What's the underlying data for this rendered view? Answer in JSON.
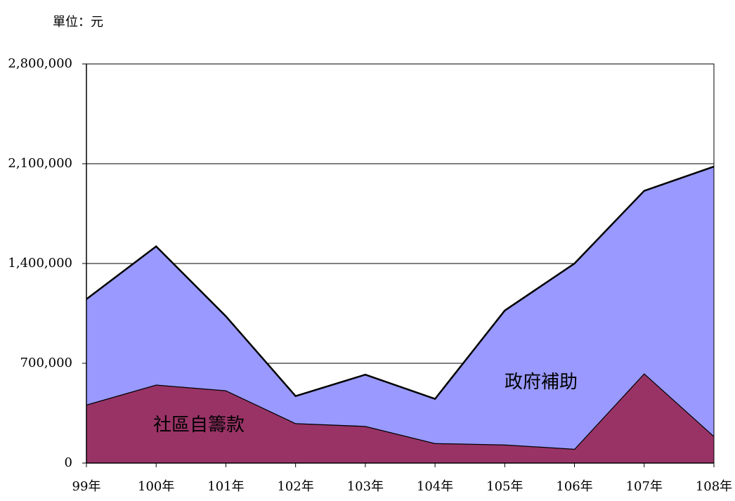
{
  "chart_data": {
    "type": "stacked_area",
    "unit_label": "單位：元",
    "categories": [
      "99年",
      "100年",
      "101年",
      "102年",
      "103年",
      "104年",
      "105年",
      "106年",
      "107年",
      "108年"
    ],
    "series": [
      {
        "name": "社區自籌款",
        "color": "#993366",
        "values": [
          410000,
          550000,
          510000,
          280000,
          260000,
          140000,
          130000,
          100000,
          630000,
          190000
        ]
      },
      {
        "name": "政府補助",
        "color": "#9999ff",
        "values": [
          740000,
          970000,
          520000,
          190000,
          360000,
          310000,
          940000,
          1300000,
          1280000,
          1890000
        ]
      }
    ],
    "ylim": [
      0,
      2800000
    ],
    "yticks": [
      0,
      {
        "value": 700000,
        "label": "700,000"
      },
      {
        "value": 1400000,
        "label": "1,400,000"
      },
      {
        "value": 2100000,
        "label": "2,100,000"
      },
      {
        "value": 2800000,
        "label": "2,800,000"
      }
    ],
    "grid": true
  }
}
